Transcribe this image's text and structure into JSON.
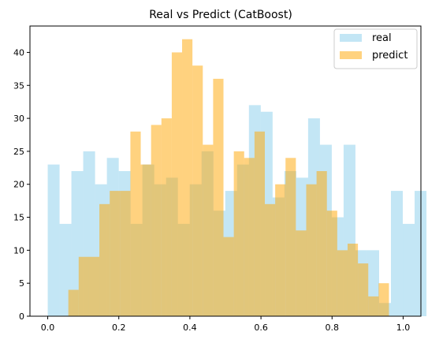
{
  "chart_data": {
    "type": "histogram",
    "title": "Real vs Predict (CatBoost)",
    "xlabel": "",
    "ylabel": "",
    "xlim": [
      -0.05,
      1.05
    ],
    "ylim": [
      0,
      44
    ],
    "xticks": [
      0.0,
      0.2,
      0.4,
      0.6,
      0.8,
      1.0
    ],
    "xtick_labels": [
      "0.0",
      "0.2",
      "0.4",
      "0.6",
      "0.8",
      "1.0"
    ],
    "yticks": [
      0,
      5,
      10,
      15,
      20,
      25,
      30,
      35,
      40
    ],
    "ytick_labels": [
      "0",
      "5",
      "10",
      "15",
      "20",
      "25",
      "30",
      "35",
      "40"
    ],
    "grid": false,
    "legend_position": "top-right",
    "series": [
      {
        "name": "real",
        "color": "#87ceeb",
        "opacity": 0.5,
        "bin_start": 0.0,
        "bin_width": 0.0333,
        "values": [
          23,
          14,
          22,
          25,
          20,
          24,
          22,
          14,
          23,
          20,
          21,
          14,
          20,
          25,
          16,
          19,
          23,
          32,
          31,
          18,
          22,
          21,
          30,
          26,
          15,
          26,
          10,
          10,
          2,
          19,
          14,
          19
        ]
      },
      {
        "name": "predict",
        "color": "#ffa500",
        "opacity": 0.5,
        "bin_start": 0.058,
        "bin_width": 0.0291,
        "values": [
          4,
          9,
          9,
          17,
          19,
          19,
          28,
          23,
          29,
          30,
          40,
          42,
          38,
          26,
          36,
          12,
          25,
          24,
          28,
          17,
          20,
          24,
          13,
          20,
          22,
          16,
          10,
          11,
          8,
          3,
          5
        ]
      }
    ]
  }
}
